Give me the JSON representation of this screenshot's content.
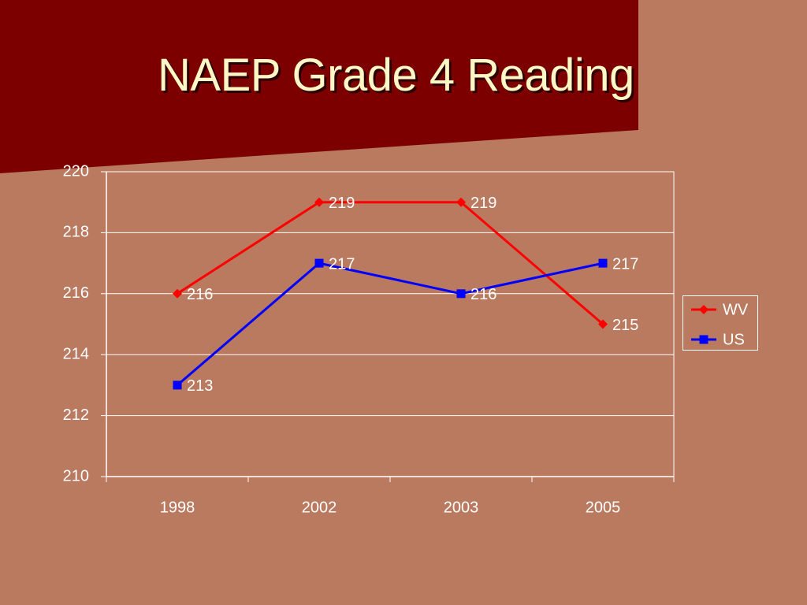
{
  "slide": {
    "title": "NAEP Grade 4 Reading",
    "colors": {
      "background": "#b97a5f",
      "banner": "#7d0000",
      "title_text": "#fff8c6",
      "wv_series": "#ff0000",
      "us_series": "#0000ff",
      "axis": "#ffffff"
    }
  },
  "chart_data": {
    "type": "line",
    "title": "",
    "xlabel": "",
    "ylabel": "",
    "categories": [
      "1998",
      "2002",
      "2003",
      "2005"
    ],
    "ylim": [
      210,
      220
    ],
    "yticks": [
      210,
      212,
      214,
      216,
      218,
      220
    ],
    "grid": true,
    "legend_position": "right",
    "series": [
      {
        "name": "WV",
        "values": [
          216,
          219,
          219,
          215
        ],
        "color": "#ff0000",
        "marker": "diamond"
      },
      {
        "name": "US",
        "values": [
          213,
          217,
          216,
          217
        ],
        "color": "#0000ff",
        "marker": "square"
      }
    ]
  }
}
